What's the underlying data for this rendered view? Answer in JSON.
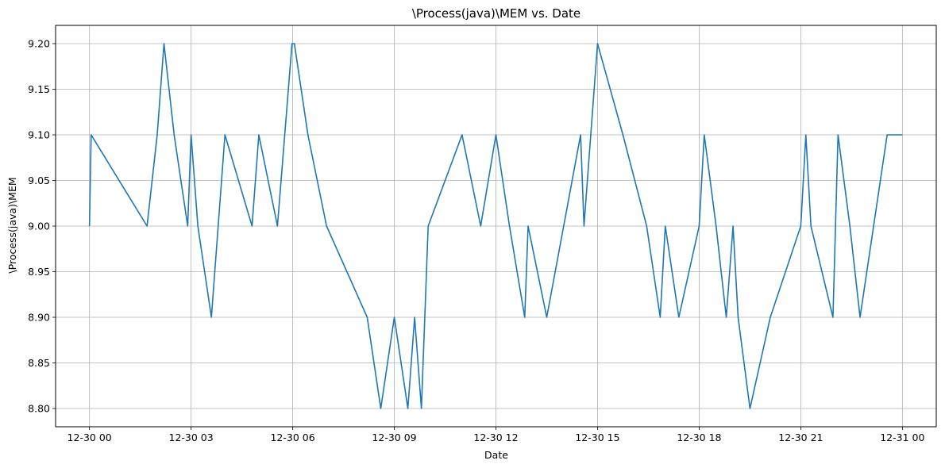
{
  "chart_data": {
    "type": "line",
    "title": "\\Process(java)\\MEM vs. Date",
    "xlabel": "Date",
    "ylabel": "\\Process(java)\\MEM",
    "grid": true,
    "line_color": "#1f77b4",
    "xlim_hours": [
      -1.0,
      25.0
    ],
    "ylim": [
      8.78,
      9.22
    ],
    "x_ticks": [
      {
        "hour": 0,
        "label": "12-30 00"
      },
      {
        "hour": 3,
        "label": "12-30 03"
      },
      {
        "hour": 6,
        "label": "12-30 06"
      },
      {
        "hour": 9,
        "label": "12-30 09"
      },
      {
        "hour": 12,
        "label": "12-30 12"
      },
      {
        "hour": 15,
        "label": "12-30 15"
      },
      {
        "hour": 18,
        "label": "12-30 18"
      },
      {
        "hour": 21,
        "label": "12-30 21"
      },
      {
        "hour": 24,
        "label": "12-31 00"
      }
    ],
    "y_ticks": [
      {
        "value": 8.8,
        "label": "8.80"
      },
      {
        "value": 8.85,
        "label": "8.85"
      },
      {
        "value": 8.9,
        "label": "8.90"
      },
      {
        "value": 8.95,
        "label": "8.95"
      },
      {
        "value": 9.0,
        "label": "9.00"
      },
      {
        "value": 9.05,
        "label": "9.05"
      },
      {
        "value": 9.1,
        "label": "9.10"
      },
      {
        "value": 9.15,
        "label": "9.15"
      },
      {
        "value": 9.2,
        "label": "9.20"
      }
    ],
    "series": [
      {
        "x_hours": [
          0,
          0.05,
          1.7,
          2.0,
          2.2,
          2.5,
          2.9,
          3.0,
          3.2,
          3.6,
          4.0,
          4.8,
          5.0,
          5.55,
          5.98,
          6.05,
          6.45,
          7.0,
          8.2,
          8.6,
          9.0,
          9.4,
          9.6,
          9.8,
          9.9,
          10.0,
          11.0,
          11.55,
          12.0,
          12.4,
          12.85,
          12.95,
          13.5,
          14.0,
          14.5,
          14.6,
          15.0,
          15.75,
          16.45,
          16.85,
          17.0,
          17.4,
          18.0,
          18.15,
          18.5,
          18.8,
          19.0,
          19.15,
          19.5,
          20.1,
          21.0,
          21.15,
          21.3,
          21.95,
          22.1,
          22.45,
          22.75,
          23.15,
          23.55,
          24.0
        ],
        "y": [
          9.0,
          9.1,
          9.0,
          9.1,
          9.2,
          9.1,
          9.0,
          9.1,
          9.0,
          8.9,
          9.1,
          9.0,
          9.1,
          9.0,
          9.2,
          9.2,
          9.1,
          9.0,
          8.9,
          8.8,
          8.9,
          8.8,
          8.9,
          8.8,
          8.9,
          9.0,
          9.1,
          9.0,
          9.1,
          9.0,
          8.9,
          9.0,
          8.9,
          9.0,
          9.1,
          9.0,
          9.2,
          9.1,
          9.0,
          8.9,
          9.0,
          8.9,
          9.0,
          9.1,
          9.0,
          8.9,
          9.0,
          8.9,
          8.8,
          8.9,
          9.0,
          9.1,
          9.0,
          8.9,
          9.1,
          9.0,
          8.9,
          9.0,
          9.1,
          9.1
        ]
      }
    ]
  }
}
